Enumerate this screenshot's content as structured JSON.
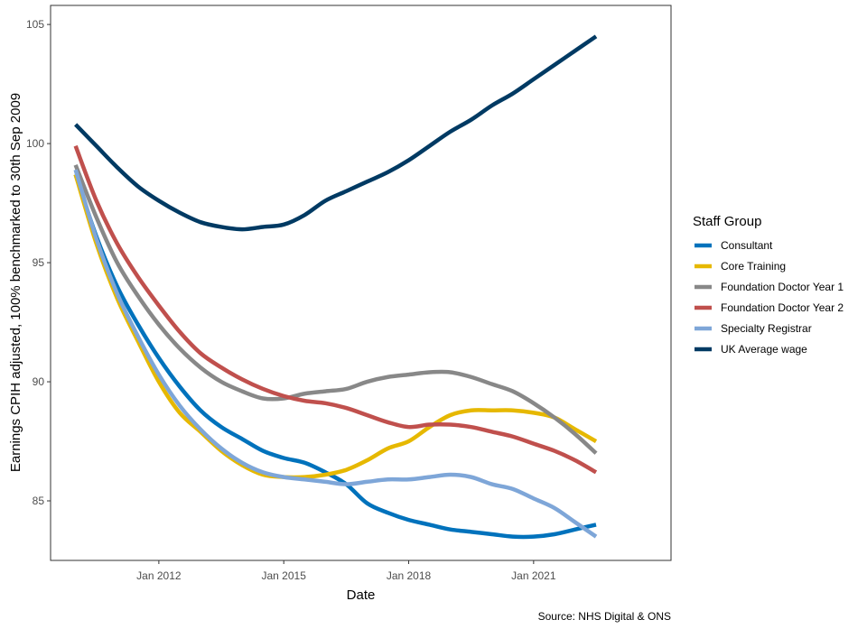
{
  "chart_data": {
    "type": "line",
    "xlabel": "Date",
    "ylabel": "Earnings CPIH adjusted, 100% benchmarked to 30th Sep 2009",
    "caption": "Source: NHS Digital & ONS",
    "legend_title": "Staff Group",
    "legend_position": "right",
    "grid": false,
    "xlim": [
      2009.4,
      2024.3
    ],
    "ylim": [
      82.5,
      105.8
    ],
    "x_ticks": [
      {
        "value": 2012,
        "label": "Jan 2012"
      },
      {
        "value": 2015,
        "label": "Jan 2015"
      },
      {
        "value": 2018,
        "label": "Jan 2018"
      },
      {
        "value": 2021,
        "label": "Jan 2021"
      }
    ],
    "y_ticks": [
      85,
      90,
      95,
      100,
      105
    ],
    "series": [
      {
        "name": "Consultant",
        "color": "#0072bc",
        "x": [
          2010.0,
          2010.5,
          2011.0,
          2011.5,
          2012.0,
          2012.5,
          2013.0,
          2013.5,
          2014.0,
          2014.5,
          2015.0,
          2015.5,
          2016.0,
          2016.5,
          2017.0,
          2017.5,
          2018.0,
          2018.5,
          2019.0,
          2019.5,
          2020.0,
          2020.5,
          2021.0,
          2021.5,
          2022.0,
          2022.5
        ],
        "y": [
          98.7,
          96.1,
          94.0,
          92.4,
          91.0,
          89.8,
          88.8,
          88.1,
          87.6,
          87.1,
          86.8,
          86.6,
          86.2,
          85.7,
          84.9,
          84.5,
          84.2,
          84.0,
          83.8,
          83.7,
          83.6,
          83.5,
          83.5,
          83.6,
          83.8,
          84.0
        ]
      },
      {
        "name": "Core Training",
        "color": "#e6b800",
        "x": [
          2010.0,
          2010.5,
          2011.0,
          2011.5,
          2012.0,
          2012.5,
          2013.0,
          2013.5,
          2014.0,
          2014.5,
          2015.0,
          2015.5,
          2016.0,
          2016.5,
          2017.0,
          2017.5,
          2018.0,
          2018.5,
          2019.0,
          2019.5,
          2020.0,
          2020.5,
          2021.0,
          2021.5,
          2022.0,
          2022.5
        ],
        "y": [
          98.7,
          95.8,
          93.5,
          91.7,
          90.0,
          88.7,
          87.9,
          87.1,
          86.5,
          86.1,
          86.0,
          86.0,
          86.1,
          86.3,
          86.7,
          87.2,
          87.5,
          88.1,
          88.6,
          88.8,
          88.8,
          88.8,
          88.7,
          88.5,
          88.0,
          87.5
        ]
      },
      {
        "name": "Foundation Doctor Year 1",
        "color": "#888888",
        "x": [
          2010.0,
          2010.5,
          2011.0,
          2011.5,
          2012.0,
          2012.5,
          2013.0,
          2013.5,
          2014.0,
          2014.5,
          2015.0,
          2015.5,
          2016.0,
          2016.5,
          2017.0,
          2017.5,
          2018.0,
          2018.5,
          2019.0,
          2019.5,
          2020.0,
          2020.5,
          2021.0,
          2021.5,
          2022.0,
          2022.5
        ],
        "y": [
          99.1,
          96.9,
          95.0,
          93.6,
          92.4,
          91.4,
          90.6,
          90.0,
          89.6,
          89.3,
          89.3,
          89.5,
          89.6,
          89.7,
          90.0,
          90.2,
          90.3,
          90.4,
          90.4,
          90.2,
          89.9,
          89.6,
          89.1,
          88.5,
          87.8,
          87.0
        ]
      },
      {
        "name": "Foundation Doctor Year 2",
        "color": "#c0504d",
        "x": [
          2010.0,
          2010.5,
          2011.0,
          2011.5,
          2012.0,
          2012.5,
          2013.0,
          2013.5,
          2014.0,
          2014.5,
          2015.0,
          2015.5,
          2016.0,
          2016.5,
          2017.0,
          2017.5,
          2018.0,
          2018.5,
          2019.0,
          2019.5,
          2020.0,
          2020.5,
          2021.0,
          2021.5,
          2022.0,
          2022.5
        ],
        "y": [
          99.9,
          97.6,
          95.8,
          94.4,
          93.2,
          92.1,
          91.2,
          90.6,
          90.1,
          89.7,
          89.4,
          89.2,
          89.1,
          88.9,
          88.6,
          88.3,
          88.1,
          88.2,
          88.2,
          88.1,
          87.9,
          87.7,
          87.4,
          87.1,
          86.7,
          86.2
        ]
      },
      {
        "name": "Specialty Registrar",
        "color": "#7ea6d8",
        "x": [
          2010.0,
          2010.5,
          2011.0,
          2011.5,
          2012.0,
          2012.5,
          2013.0,
          2013.5,
          2014.0,
          2014.5,
          2015.0,
          2015.5,
          2016.0,
          2016.5,
          2017.0,
          2017.5,
          2018.0,
          2018.5,
          2019.0,
          2019.5,
          2020.0,
          2020.5,
          2021.0,
          2021.5,
          2022.0,
          2022.5
        ],
        "y": [
          98.9,
          96.0,
          93.7,
          91.9,
          90.3,
          89.0,
          88.0,
          87.2,
          86.6,
          86.2,
          86.0,
          85.9,
          85.8,
          85.7,
          85.8,
          85.9,
          85.9,
          86.0,
          86.1,
          86.0,
          85.7,
          85.5,
          85.1,
          84.7,
          84.1,
          83.5
        ]
      },
      {
        "name": "UK Average wage",
        "color": "#003a63",
        "x": [
          2010.0,
          2010.5,
          2011.0,
          2011.5,
          2012.0,
          2012.5,
          2013.0,
          2013.5,
          2014.0,
          2014.5,
          2015.0,
          2015.5,
          2016.0,
          2016.5,
          2017.0,
          2017.5,
          2018.0,
          2018.5,
          2019.0,
          2019.5,
          2020.0,
          2020.5,
          2021.0,
          2021.5,
          2022.0,
          2022.5
        ],
        "y": [
          100.8,
          99.9,
          99.0,
          98.2,
          97.6,
          97.1,
          96.7,
          96.5,
          96.4,
          96.5,
          96.6,
          97.0,
          97.6,
          98.0,
          98.4,
          98.8,
          99.3,
          99.9,
          100.5,
          101.0,
          101.6,
          102.1,
          102.7,
          103.3,
          103.9,
          104.5
        ]
      }
    ]
  }
}
